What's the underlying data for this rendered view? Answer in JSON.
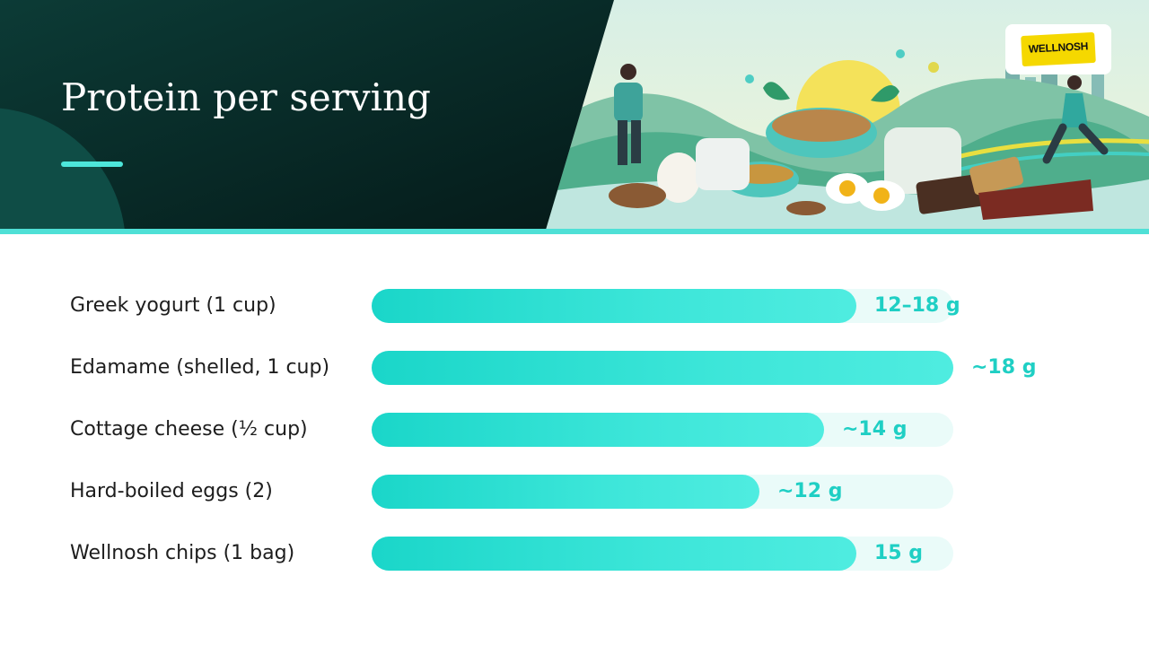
{
  "header": {
    "title": "Protein per serving",
    "logo_text": "WELLNOSH"
  },
  "colors": {
    "accent": "#1fcfc4",
    "bar": "#2ee0d3",
    "track": "#eafbf9",
    "header_dark": "#06211f"
  },
  "chart_data": {
    "type": "bar",
    "orientation": "horizontal",
    "title": "Protein per serving",
    "unit": "g",
    "xlim": [
      0,
      18
    ],
    "categories": [
      "Greek yogurt (1 cup)",
      "Edamame (shelled, 1 cup)",
      "Cottage cheese (½ cup)",
      "Hard-boiled eggs (2)",
      "Wellnosh chips (1 bag)"
    ],
    "values": [
      15,
      18,
      14,
      12,
      15
    ],
    "value_labels": [
      "12–18 g",
      "~18 g",
      "~14 g",
      "~12 g",
      "15 g"
    ]
  }
}
